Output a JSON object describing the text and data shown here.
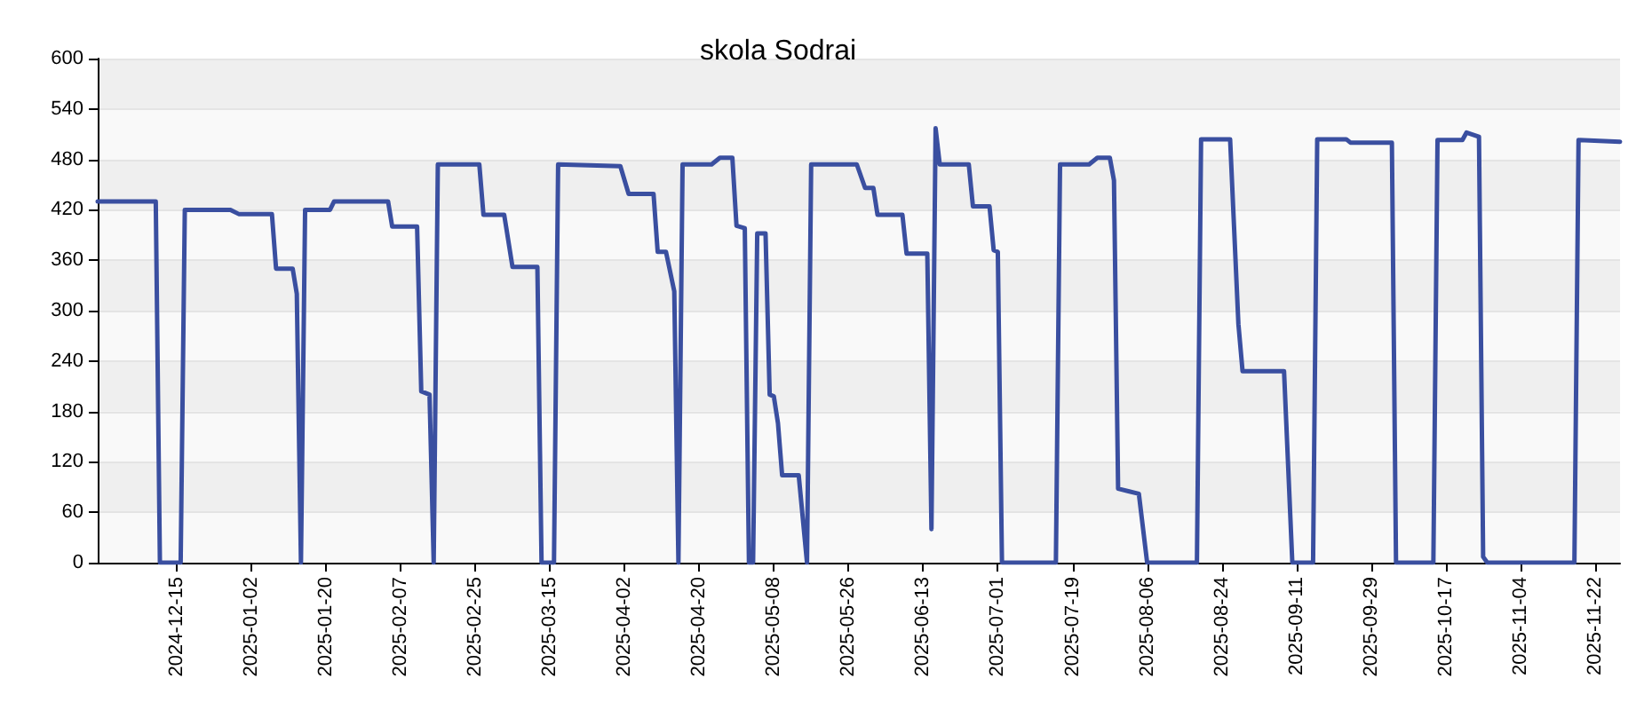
{
  "chart_data": {
    "type": "line",
    "title": "skola Sodrai",
    "x": [
      "2024-11-26",
      "2024-12-10",
      "2024-12-11",
      "2024-12-16",
      "2024-12-17",
      "2024-12-28",
      "2024-12-30",
      "2025-01-07",
      "2025-01-08",
      "2025-01-12",
      "2025-01-13",
      "2025-01-14",
      "2025-01-15",
      "2025-01-21",
      "2025-01-22",
      "2025-02-04",
      "2025-02-05",
      "2025-02-11",
      "2025-02-12",
      "2025-02-14",
      "2025-02-15",
      "2025-02-16",
      "2025-02-26",
      "2025-02-27",
      "2025-03-04",
      "2025-03-06",
      "2025-03-12",
      "2025-03-13",
      "2025-03-16",
      "2025-03-17",
      "2025-04-01",
      "2025-04-03",
      "2025-04-09",
      "2025-04-10",
      "2025-04-12",
      "2025-04-14",
      "2025-04-15",
      "2025-04-16",
      "2025-04-23",
      "2025-04-25",
      "2025-04-28",
      "2025-04-29",
      "2025-05-01",
      "2025-05-02",
      "2025-05-03",
      "2025-05-04",
      "2025-05-06",
      "2025-05-07",
      "2025-05-08",
      "2025-05-09",
      "2025-05-10",
      "2025-05-14",
      "2025-05-16",
      "2025-05-17",
      "2025-05-28",
      "2025-05-30",
      "2025-06-01",
      "2025-06-02",
      "2025-06-08",
      "2025-06-09",
      "2025-06-14",
      "2025-06-15",
      "2025-06-16",
      "2025-06-17",
      "2025-06-24",
      "2025-06-25",
      "2025-06-29",
      "2025-06-30",
      "2025-07-01",
      "2025-07-02",
      "2025-07-15",
      "2025-07-16",
      "2025-07-23",
      "2025-07-25",
      "2025-07-28",
      "2025-07-29",
      "2025-07-30",
      "2025-08-04",
      "2025-08-06",
      "2025-08-18",
      "2025-08-19",
      "2025-08-26",
      "2025-08-28",
      "2025-08-29",
      "2025-09-08",
      "2025-09-10",
      "2025-09-15",
      "2025-09-16",
      "2025-09-23",
      "2025-09-24",
      "2025-10-04",
      "2025-10-05",
      "2025-10-14",
      "2025-10-15",
      "2025-10-21",
      "2025-10-22",
      "2025-10-25",
      "2025-10-26",
      "2025-10-27",
      "2025-11-17",
      "2025-11-18",
      "2025-11-28"
    ],
    "series": [
      {
        "color": "#3a4fa0",
        "values": [
          430,
          430,
          0,
          0,
          420,
          420,
          415,
          415,
          350,
          350,
          320,
          0,
          420,
          420,
          430,
          430,
          400,
          400,
          204,
          200,
          0,
          474,
          474,
          414,
          414,
          352,
          352,
          0,
          0,
          474,
          472,
          439,
          439,
          370,
          370,
          323,
          0,
          474,
          474,
          482,
          482,
          401,
          398,
          0,
          0,
          392,
          392,
          200,
          198,
          166,
          104,
          104,
          0,
          474,
          474,
          446,
          446,
          414,
          414,
          368,
          368,
          40,
          517,
          474,
          474,
          424,
          424,
          372,
          370,
          0,
          0,
          474,
          474,
          482,
          482,
          455,
          88,
          82,
          0,
          0,
          504,
          504,
          284,
          228,
          228,
          0,
          0,
          504,
          504,
          500,
          500,
          0,
          0,
          503,
          503,
          512,
          507,
          7,
          0,
          0,
          503,
          501
        ]
      }
    ],
    "xlim": [
      "2024-11-26",
      "2025-11-28"
    ],
    "xticks": [
      "2024-12-15",
      "2025-01-02",
      "2025-01-20",
      "2025-02-07",
      "2025-02-25",
      "2025-03-15",
      "2025-04-02",
      "2025-04-20",
      "2025-05-08",
      "2025-05-26",
      "2025-06-13",
      "2025-07-01",
      "2025-07-19",
      "2025-08-06",
      "2025-08-24",
      "2025-09-11",
      "2025-09-29",
      "2025-10-17",
      "2025-11-04",
      "2025-11-22"
    ],
    "ylim": [
      0,
      600
    ],
    "yticks": [
      0,
      60,
      120,
      180,
      240,
      300,
      360,
      420,
      480,
      540,
      600
    ],
    "grid": "y",
    "marker": "none",
    "line_style": "solid"
  }
}
